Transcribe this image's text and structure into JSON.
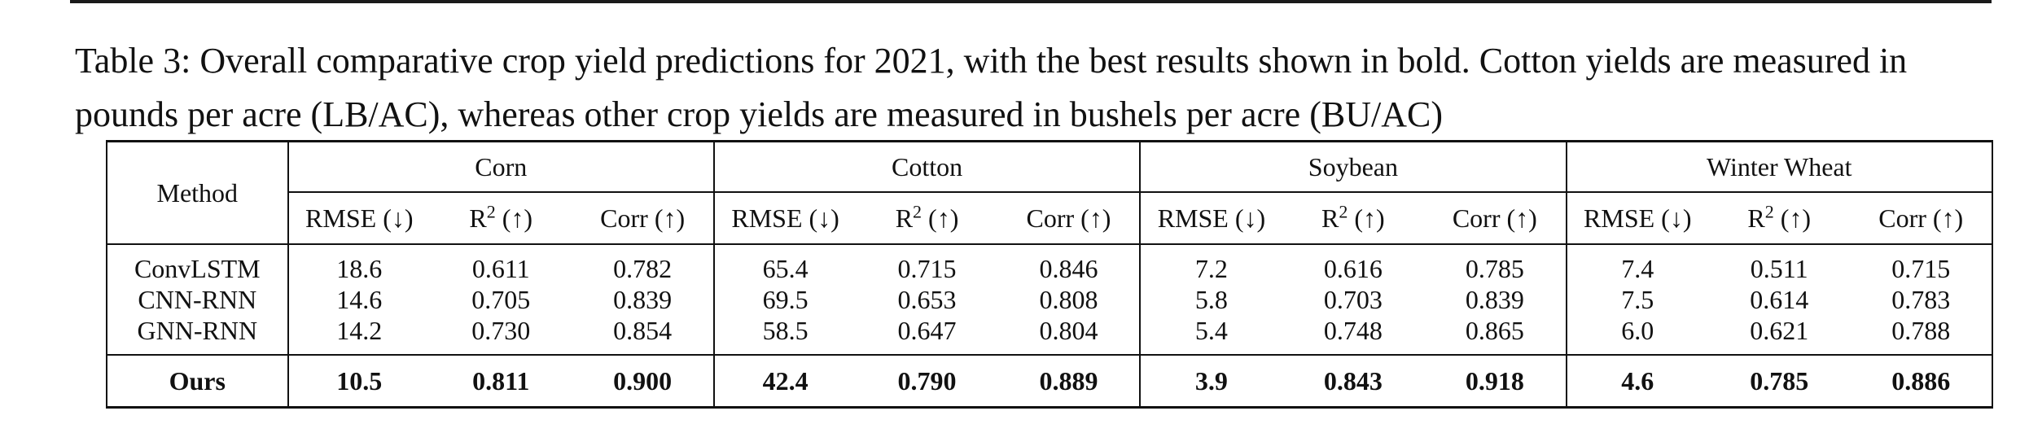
{
  "caption": "Table 3: Overall comparative crop yield predictions for 2021, with the best results shown in bold. Cotton yields are measured in pounds per acre (LB/AC), whereas other crop yields are measured in bushels per acre (BU/AC)",
  "header": {
    "method": "Method",
    "crops": [
      "Corn",
      "Cotton",
      "Soybean",
      "Winter Wheat"
    ],
    "metric_rmse": "RMSE (↓)",
    "metric_r2_base": "R",
    "metric_r2_sup": "2",
    "metric_r2_arrow": " (↑)",
    "metric_corr": "Corr (↑)"
  },
  "rows": [
    {
      "method": "ConvLSTM",
      "values": [
        "18.6",
        "0.611",
        "0.782",
        "65.4",
        "0.715",
        "0.846",
        "7.2",
        "0.616",
        "0.785",
        "7.4",
        "0.511",
        "0.715"
      ]
    },
    {
      "method": "CNN-RNN",
      "values": [
        "14.6",
        "0.705",
        "0.839",
        "69.5",
        "0.653",
        "0.808",
        "5.8",
        "0.703",
        "0.839",
        "7.5",
        "0.614",
        "0.783"
      ]
    },
    {
      "method": "GNN-RNN",
      "values": [
        "14.2",
        "0.730",
        "0.854",
        "58.5",
        "0.647",
        "0.804",
        "5.4",
        "0.748",
        "0.865",
        "6.0",
        "0.621",
        "0.788"
      ]
    }
  ],
  "ours": {
    "method": "Ours",
    "values": [
      "10.5",
      "0.811",
      "0.900",
      "42.4",
      "0.790",
      "0.889",
      "3.9",
      "0.843",
      "0.918",
      "4.6",
      "0.785",
      "0.886"
    ]
  }
}
